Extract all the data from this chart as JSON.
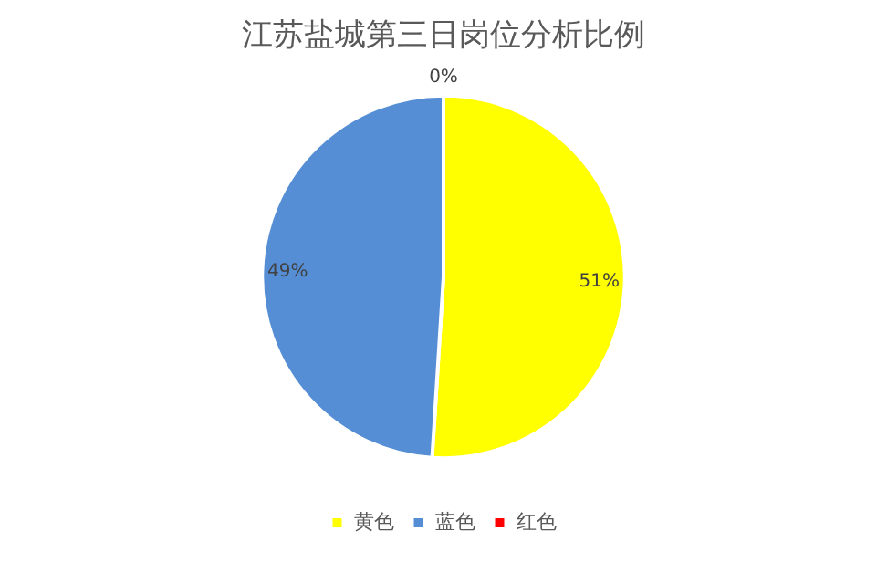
{
  "chart_data": {
    "type": "pie",
    "title": "江苏盐城第三日岗位分析比例",
    "categories": [
      "黄色",
      "蓝色",
      "红色"
    ],
    "values": [
      51,
      49,
      0
    ],
    "colors": [
      "#ffff00",
      "#558ed5",
      "#ff0000"
    ],
    "value_labels": [
      "51%",
      "49%",
      "0%"
    ],
    "legend": "bottom"
  }
}
